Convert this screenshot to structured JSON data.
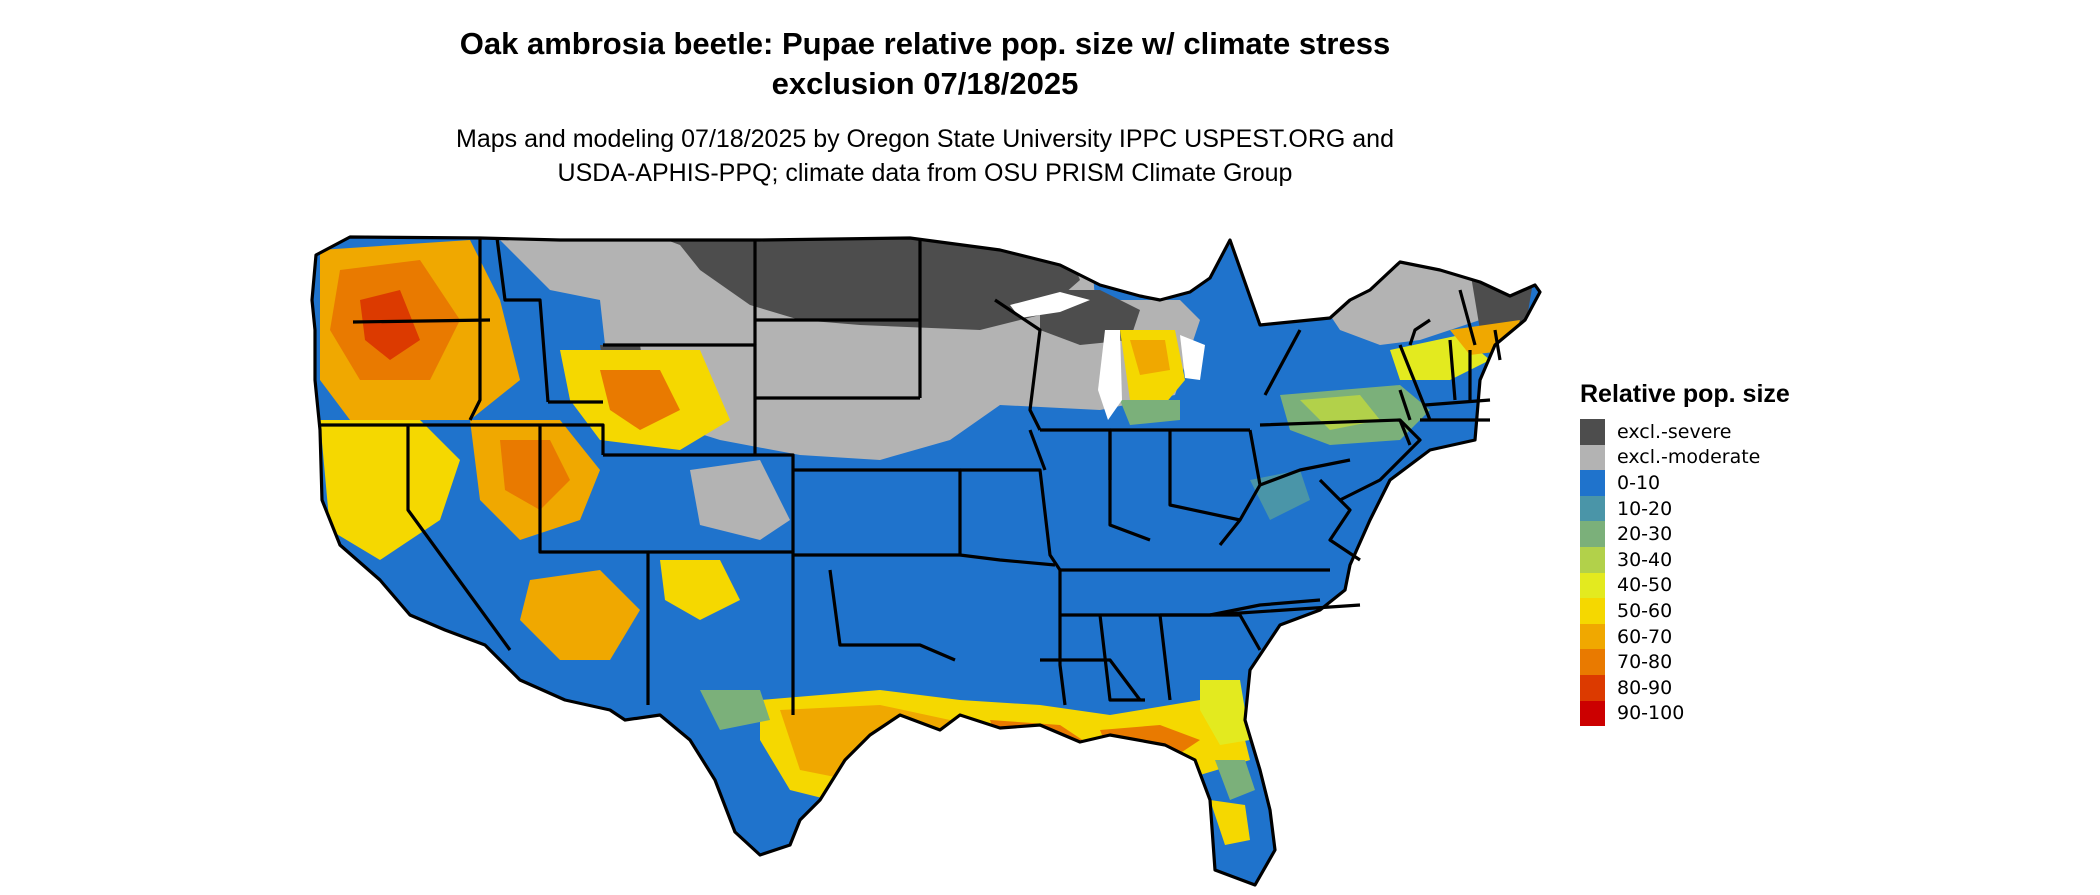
{
  "title": {
    "line1": "Oak ambrosia beetle: Pupae relative pop. size w/ climate stress",
    "line2": "exclusion 07/18/2025"
  },
  "subtitle": {
    "line1": "Maps and modeling 07/18/2025 by Oregon State University IPPC USPEST.ORG and",
    "line2": "USDA-APHIS-PPQ; climate data from OSU PRISM Climate Group"
  },
  "legend": {
    "title": "Relative pop. size",
    "items": [
      {
        "label": "excl.-severe",
        "color": "#4d4d4d"
      },
      {
        "label": "excl.-moderate",
        "color": "#b3b3b3"
      },
      {
        "label": "0-10",
        "color": "#1f73cc"
      },
      {
        "label": "10-20",
        "color": "#4a95a8"
      },
      {
        "label": "20-30",
        "color": "#7bb07a"
      },
      {
        "label": "30-40",
        "color": "#b2d14a"
      },
      {
        "label": "40-50",
        "color": "#e3ea1f"
      },
      {
        "label": "50-60",
        "color": "#f5d800"
      },
      {
        "label": "60-70",
        "color": "#f0a800"
      },
      {
        "label": "70-80",
        "color": "#e97a00"
      },
      {
        "label": "80-90",
        "color": "#dc3a00"
      },
      {
        "label": "90-100",
        "color": "#cc0000"
      }
    ]
  }
}
